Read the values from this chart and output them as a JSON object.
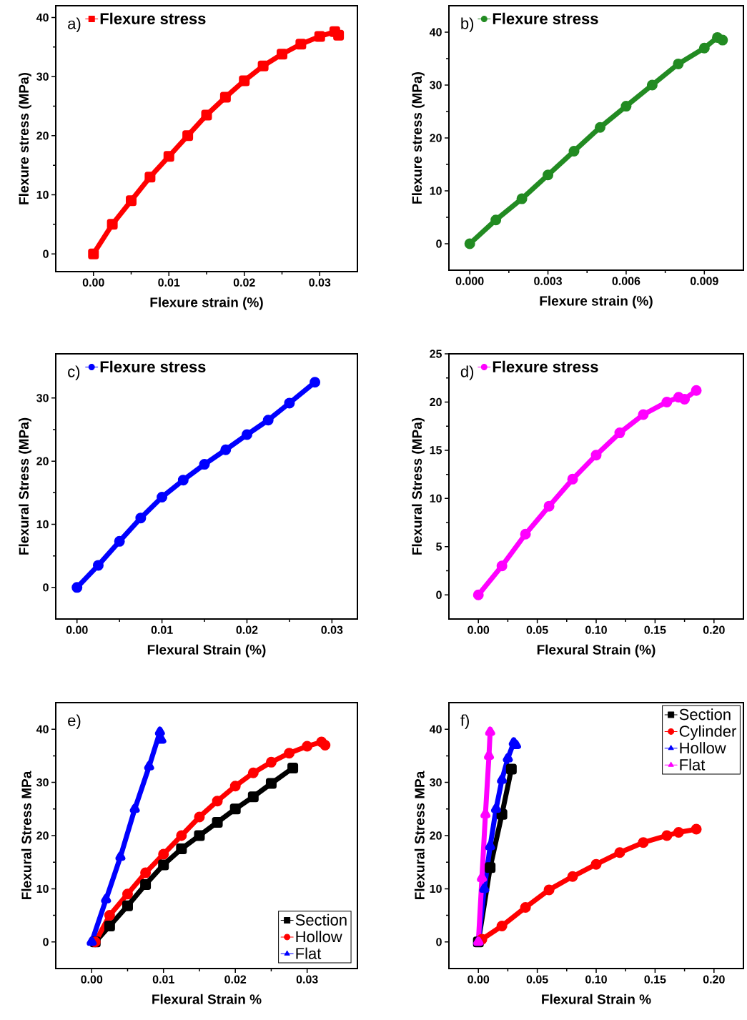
{
  "chart_data": [
    {
      "type": "line",
      "xlabel": "Flexure strain (%)",
      "ylabel": "Flexure stress (MPa)",
      "annotations": [
        "a)"
      ],
      "legend": "top left",
      "xlim": [
        -0.005,
        0.035
      ],
      "ylim": [
        -3,
        42
      ],
      "xticks": [
        {
          "value": 0,
          "label": "0.00"
        },
        0.01,
        0.02,
        0.03
      ],
      "yticks": [
        0,
        10,
        20,
        30,
        40
      ],
      "series": [
        {
          "name": "Flexure stress",
          "color": "#ff0000",
          "marker": "square",
          "x": [
            0,
            0.0025,
            0.005,
            0.0075,
            0.01,
            0.0125,
            0.015,
            0.0175,
            0.02,
            0.0225,
            0.025,
            0.0275,
            0.03,
            0.032,
            0.0325
          ],
          "values": [
            0,
            5,
            9,
            13,
            16.5,
            20,
            23.5,
            26.5,
            29.3,
            31.8,
            33.8,
            35.5,
            36.8,
            37.6,
            37
          ]
        }
      ]
    },
    {
      "type": "line",
      "xlabel": "Flexure strain (%)",
      "ylabel": "Flexure stress (MPa)",
      "annotations": [
        "b)"
      ],
      "legend": "top left",
      "xlim": [
        -0.0008,
        0.0105
      ],
      "ylim": [
        -5,
        45
      ],
      "xticks": [
        {
          "value": 0,
          "label": "0.000"
        },
        0.003,
        0.006,
        0.009
      ],
      "yticks": [
        0,
        10,
        20,
        30,
        40
      ],
      "series": [
        {
          "name": "Flexure stress",
          "color": "#228b22",
          "marker": "circle",
          "x": [
            0,
            0.001,
            0.002,
            0.003,
            0.004,
            0.005,
            0.006,
            0.007,
            0.008,
            0.009,
            0.0095,
            0.0097
          ],
          "values": [
            0,
            4.5,
            8.5,
            13,
            17.5,
            22,
            26,
            30,
            34,
            37,
            39,
            38.5
          ]
        }
      ]
    },
    {
      "type": "line",
      "xlabel": "Flexural Strain (%)",
      "ylabel": "Flexural Stress (MPa)",
      "annotations": [
        "c)"
      ],
      "legend": "top left",
      "xlim": [
        -0.0025,
        0.033
      ],
      "ylim": [
        -5,
        37
      ],
      "xticks": [
        {
          "value": 0,
          "label": "0.00"
        },
        0.01,
        0.02,
        0.03
      ],
      "yticks": [
        0,
        10,
        20,
        30
      ],
      "series": [
        {
          "name": "Flexure stress",
          "color": "#0000ff",
          "marker": "circle",
          "x": [
            0,
            0.0025,
            0.005,
            0.0075,
            0.01,
            0.0125,
            0.015,
            0.0175,
            0.02,
            0.0225,
            0.025,
            0.028
          ],
          "values": [
            0,
            3.5,
            7.3,
            11,
            14.3,
            17,
            19.5,
            21.8,
            24.2,
            26.5,
            29.2,
            32.5
          ]
        }
      ]
    },
    {
      "type": "line",
      "xlabel": "Flexural Strain (%)",
      "ylabel": "Flexural Stress (MPa)",
      "annotations": [
        "d)"
      ],
      "legend": "top left",
      "xlim": [
        -0.025,
        0.225
      ],
      "ylim": [
        -2.5,
        25
      ],
      "xticks": [
        {
          "value": 0,
          "label": "0.00"
        },
        0.05,
        {
          "value": 0.1,
          "label": "0.10"
        },
        0.15,
        {
          "value": 0.2,
          "label": "0.20"
        }
      ],
      "yticks": [
        0,
        5,
        10,
        15,
        20,
        25
      ],
      "series": [
        {
          "name": "Flexure stress",
          "color": "#ff00ff",
          "marker": "circle",
          "x": [
            0,
            0.02,
            0.04,
            0.06,
            0.08,
            0.1,
            0.12,
            0.14,
            0.16,
            0.17,
            0.175,
            0.185
          ],
          "values": [
            0,
            3,
            6.3,
            9.2,
            12,
            14.5,
            16.8,
            18.7,
            20,
            20.5,
            20.3,
            21.2
          ]
        }
      ]
    },
    {
      "type": "line",
      "xlabel": "Flexural Strain %",
      "ylabel": "Flexural Stress MPa",
      "annotations": [
        "e)"
      ],
      "legend": "bottom right",
      "xlim": [
        -0.005,
        0.037
      ],
      "ylim": [
        -5,
        45
      ],
      "xticks": [
        {
          "value": 0,
          "label": "0.00"
        },
        0.01,
        0.02,
        0.03
      ],
      "yticks": [
        0,
        10,
        20,
        30,
        40
      ],
      "series": [
        {
          "name": "Section",
          "color": "#000000",
          "marker": "square",
          "x": [
            0.0005,
            0.0025,
            0.005,
            0.0075,
            0.01,
            0.0125,
            0.015,
            0.0175,
            0.02,
            0.0225,
            0.025,
            0.028
          ],
          "values": [
            0,
            3,
            6.8,
            10.8,
            14.5,
            17.5,
            20,
            22.5,
            25,
            27.3,
            29.8,
            32.7
          ]
        },
        {
          "name": "Hollow",
          "color": "#ff0000",
          "marker": "circle",
          "x": [
            0.0005,
            0.0025,
            0.005,
            0.0075,
            0.01,
            0.0125,
            0.015,
            0.0175,
            0.02,
            0.0225,
            0.025,
            0.0275,
            0.03,
            0.032,
            0.0325
          ],
          "values": [
            0,
            5,
            9,
            13,
            16.5,
            20,
            23.5,
            26.5,
            29.3,
            31.8,
            33.8,
            35.5,
            36.8,
            37.6,
            37
          ]
        },
        {
          "name": "Flat",
          "color": "#0000ff",
          "marker": "triangle",
          "x": [
            0,
            0.002,
            0.004,
            0.006,
            0.008,
            0.0095,
            0.0097
          ],
          "values": [
            0,
            8,
            16,
            25,
            33,
            39.5,
            38
          ]
        }
      ]
    },
    {
      "type": "line",
      "xlabel": "Flexural Strain %",
      "ylabel": "Flexural Stress MPa",
      "annotations": [
        "f)"
      ],
      "legend": "top right",
      "xlim": [
        -0.025,
        0.225
      ],
      "ylim": [
        -5,
        45
      ],
      "xticks": [
        {
          "value": 0,
          "label": "0.00"
        },
        0.05,
        {
          "value": 0.1,
          "label": "0.10"
        },
        0.15,
        {
          "value": 0.2,
          "label": "0.20"
        }
      ],
      "yticks": [
        0,
        10,
        20,
        30,
        40
      ],
      "series": [
        {
          "name": "Section",
          "color": "#000000",
          "marker": "square",
          "x": [
            0,
            0.01,
            0.02,
            0.028
          ],
          "values": [
            0,
            14,
            24,
            32.5
          ]
        },
        {
          "name": "Cylinder",
          "color": "#ff0000",
          "marker": "circle",
          "x": [
            0.003,
            0.02,
            0.04,
            0.06,
            0.08,
            0.1,
            0.12,
            0.14,
            0.16,
            0.17,
            0.185
          ],
          "values": [
            0.5,
            3,
            6.5,
            9.8,
            12.3,
            14.6,
            16.8,
            18.7,
            20,
            20.6,
            21.2
          ]
        },
        {
          "name": "Hollow",
          "color": "#0000ff",
          "marker": "triangle",
          "x": [
            0,
            0.005,
            0.01,
            0.015,
            0.02,
            0.025,
            0.03,
            0.032
          ],
          "values": [
            0,
            10,
            18,
            25,
            30.5,
            34.5,
            37.5,
            37
          ]
        },
        {
          "name": "Flat",
          "color": "#ff00ff",
          "marker": "triangle",
          "x": [
            0,
            0.003,
            0.006,
            0.009,
            0.01
          ],
          "values": [
            0,
            12,
            24,
            35,
            39.5
          ]
        }
      ]
    }
  ]
}
